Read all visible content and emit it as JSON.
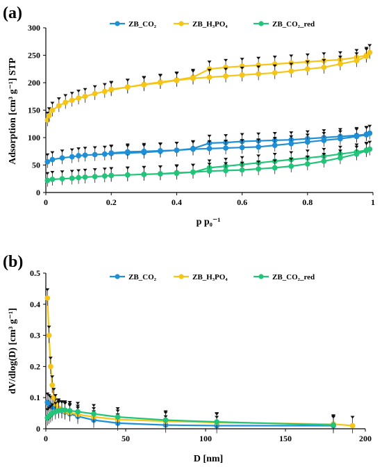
{
  "panels": [
    {
      "letter": "(a)",
      "xlabel": "p p₀⁻¹",
      "ylabel": "Adsorption [cm³ g⁻¹] STP"
    },
    {
      "letter": "(b)",
      "xlabel": "D [nm]",
      "ylabel": "dV/dlog(D)  [cm³ g⁻¹]"
    }
  ],
  "colors": {
    "ZB_CO2": "#1f8fd6",
    "ZB_H3PO4": "#f5c518",
    "ZB_CO2_red": "#22c47a"
  },
  "chart_data": [
    {
      "type": "line",
      "xlim": [
        0,
        1
      ],
      "ylim": [
        0,
        300
      ],
      "xticks": [
        "0",
        "0.2",
        "0.4",
        "0.6",
        "0.8",
        "1"
      ],
      "yticks": [
        "0",
        "50",
        "100",
        "150",
        "200",
        "250",
        "300"
      ],
      "xtick_values": [
        0,
        0.2,
        0.4,
        0.6,
        0.8,
        1
      ],
      "ytick_values": [
        0,
        50,
        100,
        150,
        200,
        250,
        300
      ],
      "legend": "top",
      "grid": false,
      "error_bars": true,
      "series": [
        {
          "name": "ZB_CO₂",
          "color_key": "ZB_CO2",
          "x": [
            0.005,
            0.02,
            0.05,
            0.08,
            0.1,
            0.12,
            0.15,
            0.18,
            0.2,
            0.25,
            0.3,
            0.35,
            0.4,
            0.45,
            0.5,
            0.55,
            0.6,
            0.65,
            0.7,
            0.75,
            0.8,
            0.85,
            0.9,
            0.95,
            0.98,
            0.99,
            0.98,
            0.95,
            0.9,
            0.85,
            0.8,
            0.75,
            0.7,
            0.65,
            0.6,
            0.55,
            0.5,
            0.45,
            0.4,
            0.35,
            0.3,
            0.25,
            0.2
          ],
          "y": [
            56,
            60,
            63,
            65,
            67,
            68,
            69,
            70,
            71,
            72,
            73,
            75,
            77,
            80,
            90,
            91,
            93,
            94,
            95,
            96,
            98,
            100,
            102,
            104,
            106,
            108,
            105,
            102,
            98,
            95,
            92,
            89,
            86,
            83,
            82,
            81,
            80,
            79,
            77,
            76,
            75,
            74,
            72
          ]
        },
        {
          "name": "ZB_H₃PO₄",
          "color_key": "ZB_H3PO4",
          "x": [
            0.005,
            0.01,
            0.02,
            0.04,
            0.06,
            0.08,
            0.1,
            0.12,
            0.15,
            0.18,
            0.2,
            0.25,
            0.3,
            0.35,
            0.4,
            0.45,
            0.5,
            0.55,
            0.6,
            0.65,
            0.7,
            0.75,
            0.8,
            0.85,
            0.9,
            0.95,
            0.98,
            0.99,
            0.98,
            0.95,
            0.9,
            0.85,
            0.8,
            0.75,
            0.7,
            0.65,
            0.6,
            0.55,
            0.5,
            0.45,
            0.4,
            0.35,
            0.3,
            0.25,
            0.2
          ],
          "y": [
            132,
            140,
            150,
            158,
            164,
            168,
            172,
            175,
            180,
            184,
            187,
            192,
            197,
            201,
            205,
            210,
            225,
            228,
            230,
            232,
            234,
            236,
            238,
            240,
            242,
            246,
            250,
            255,
            248,
            240,
            234,
            228,
            225,
            221,
            218,
            216,
            214,
            212,
            210,
            208,
            204,
            200,
            196,
            192,
            188
          ]
        },
        {
          "name": "ZB_CO₂_red",
          "color_key": "ZB_CO2_red",
          "x": [
            0.005,
            0.02,
            0.05,
            0.08,
            0.1,
            0.12,
            0.15,
            0.18,
            0.2,
            0.25,
            0.3,
            0.35,
            0.4,
            0.45,
            0.5,
            0.55,
            0.6,
            0.65,
            0.7,
            0.75,
            0.8,
            0.85,
            0.9,
            0.95,
            0.98,
            0.99,
            0.98,
            0.95,
            0.9,
            0.85,
            0.8,
            0.75,
            0.7,
            0.65,
            0.6,
            0.55,
            0.5,
            0.45,
            0.4,
            0.35,
            0.3,
            0.25,
            0.2
          ],
          "y": [
            22,
            24,
            25,
            26,
            27,
            28,
            29,
            30,
            31,
            32,
            33,
            34,
            36,
            37,
            45,
            48,
            51,
            54,
            57,
            60,
            63,
            66,
            70,
            74,
            77,
            79,
            76,
            70,
            63,
            57,
            52,
            48,
            45,
            43,
            41,
            40,
            39,
            37,
            35,
            34,
            33,
            32,
            31
          ]
        }
      ]
    },
    {
      "type": "line",
      "xlim": [
        0,
        200
      ],
      "ylim": [
        0,
        0.5
      ],
      "xticks": [
        "0",
        "50",
        "100",
        "150",
        "200"
      ],
      "yticks": [
        "0",
        "0.1",
        "0.2",
        "0.3",
        "0.4",
        "0.5"
      ],
      "xtick_values": [
        0,
        50,
        100,
        150,
        200
      ],
      "ytick_values": [
        0,
        0.1,
        0.2,
        0.3,
        0.4,
        0.5
      ],
      "legend": "top",
      "grid": false,
      "error_bars": true,
      "series": [
        {
          "name": "ZB_CO₂",
          "color_key": "ZB_CO2",
          "x": [
            1,
            2,
            3,
            4,
            6,
            8,
            10,
            12,
            15,
            20,
            30,
            45,
            75,
            107,
            180
          ],
          "y": [
            0.085,
            0.08,
            0.075,
            0.07,
            0.066,
            0.062,
            0.058,
            0.054,
            0.048,
            0.04,
            0.028,
            0.018,
            0.012,
            0.01,
            0.01
          ]
        },
        {
          "name": "ZB_H₃PO₄",
          "color_key": "ZB_H3PO4",
          "x": [
            1,
            2,
            3,
            4,
            5,
            6,
            8,
            10,
            12,
            15,
            20,
            30,
            45,
            75,
            107,
            180,
            192
          ],
          "y": [
            0.42,
            0.3,
            0.2,
            0.14,
            0.1,
            0.08,
            0.066,
            0.06,
            0.056,
            0.052,
            0.046,
            0.038,
            0.03,
            0.024,
            0.02,
            0.015,
            0.01
          ]
        },
        {
          "name": "ZB_CO₂_red",
          "color_key": "ZB_CO2_red",
          "x": [
            1,
            2,
            3,
            4,
            6,
            8,
            10,
            12,
            15,
            20,
            30,
            45,
            75,
            107,
            180
          ],
          "y": [
            0.035,
            0.04,
            0.045,
            0.05,
            0.055,
            0.058,
            0.06,
            0.06,
            0.058,
            0.055,
            0.048,
            0.038,
            0.028,
            0.022,
            0.012
          ]
        }
      ]
    }
  ]
}
